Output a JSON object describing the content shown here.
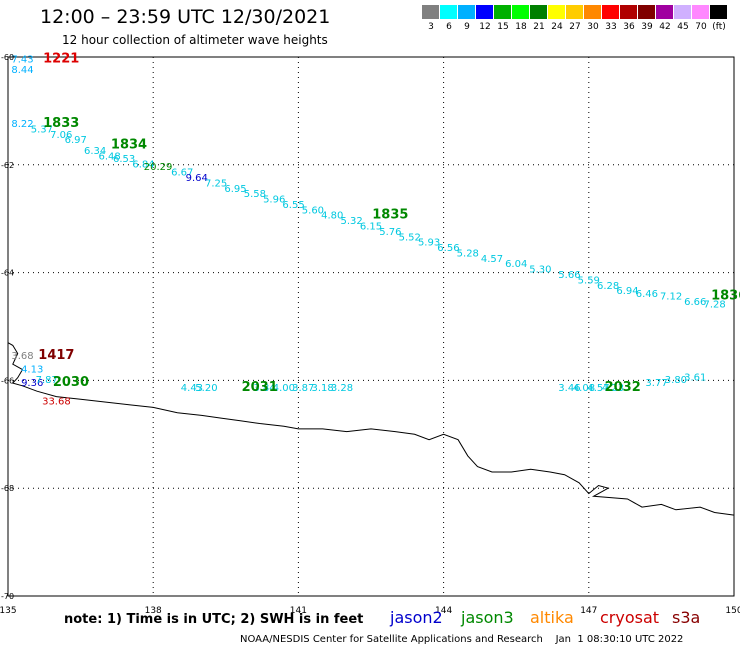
{
  "title": "12:00 – 23:59 UTC 12/30/2021",
  "subtitle": "12 hour collection of altimeter wave heights",
  "note": "note: 1) Time is in UTC; 2) SWH is in feet",
  "credit": "NOAA/NESDIS Center for Satellite Applications and Research    Jan  1 08:30:10 UTC 2022",
  "satellites": [
    {
      "name": "jason2",
      "color": "#0000cc"
    },
    {
      "name": "jason3",
      "color": "#008800"
    },
    {
      "name": "altika",
      "color": "#ff8800"
    },
    {
      "name": "cryosat",
      "color": "#cc0000"
    },
    {
      "name": "s3a",
      "color": "#880000"
    }
  ],
  "legend": {
    "colors": [
      "#808080",
      "#00ffff",
      "#00b0ff",
      "#0000ff",
      "#00b000",
      "#00ff00",
      "#008000",
      "#ffff00",
      "#ffcc00",
      "#ff8800",
      "#ff0000",
      "#b00000",
      "#800000",
      "#a000a0",
      "#d0b0ff",
      "#ff88ff",
      "#000000"
    ],
    "labels": [
      "3",
      "6",
      "9",
      "12",
      "15",
      "18",
      "21",
      "24",
      "27",
      "30",
      "33",
      "36",
      "39",
      "42",
      "45",
      "70",
      "(ft)"
    ]
  },
  "map": {
    "lon_range": [
      135,
      150
    ],
    "lat_range": [
      -70,
      -60
    ],
    "lon_ticks": [
      "135",
      "138",
      "141",
      "144",
      "147",
      "150"
    ],
    "lat_ticks": [
      "-60",
      "-62",
      "-64",
      "-66",
      "-68",
      "-70"
    ],
    "grid": true,
    "time_labels": [
      {
        "text": "1221",
        "lon": 136.1,
        "lat": -60.1,
        "color": "#dd0000"
      },
      {
        "text": "1833",
        "lon": 136.1,
        "lat": -61.3,
        "color": "#008800"
      },
      {
        "text": "1834",
        "lon": 137.5,
        "lat": -61.7,
        "color": "#008800"
      },
      {
        "text": "1835",
        "lon": 142.9,
        "lat": -63.0,
        "color": "#008800"
      },
      {
        "text": "1836",
        "lon": 149.9,
        "lat": -64.5,
        "color": "#008800"
      },
      {
        "text": "1417",
        "lon": 136.0,
        "lat": -65.6,
        "color": "#800000"
      },
      {
        "text": "2030",
        "lon": 136.3,
        "lat": -66.1,
        "color": "#008800"
      },
      {
        "text": "2031",
        "lon": 140.2,
        "lat": -66.2,
        "color": "#008800"
      },
      {
        "text": "2032",
        "lon": 147.7,
        "lat": -66.2,
        "color": "#008800"
      }
    ],
    "wave_labels": [
      {
        "text": "7.43",
        "lon": 135.3,
        "lat": -60.1,
        "color": "#00b0ff"
      },
      {
        "text": "8.44",
        "lon": 135.3,
        "lat": -60.3,
        "color": "#00b0ff"
      },
      {
        "text": "8.22",
        "lon": 135.3,
        "lat": -61.3,
        "color": "#00b0ff"
      },
      {
        "text": "5.37",
        "lon": 135.7,
        "lat": -61.4,
        "color": "#00c8e0"
      },
      {
        "text": "7.06",
        "lon": 136.1,
        "lat": -61.5,
        "color": "#00c8e0"
      },
      {
        "text": "6.97",
        "lon": 136.4,
        "lat": -61.6,
        "color": "#00c8e0"
      },
      {
        "text": "6.34",
        "lon": 136.8,
        "lat": -61.8,
        "color": "#00c8e0"
      },
      {
        "text": "6.48",
        "lon": 137.1,
        "lat": -61.9,
        "color": "#00c8e0"
      },
      {
        "text": "6.53",
        "lon": 137.4,
        "lat": -61.95,
        "color": "#00c8e0"
      },
      {
        "text": "6.84",
        "lon": 137.8,
        "lat": -62.05,
        "color": "#00c8e0"
      },
      {
        "text": "20.29",
        "lon": 138.1,
        "lat": -62.1,
        "color": "#008800"
      },
      {
        "text": "6.67",
        "lon": 138.6,
        "lat": -62.2,
        "color": "#00c8e0"
      },
      {
        "text": "9.64",
        "lon": 138.9,
        "lat": -62.3,
        "color": "#0000cc"
      },
      {
        "text": "7.25",
        "lon": 139.3,
        "lat": -62.4,
        "color": "#00c8e0"
      },
      {
        "text": "6.95",
        "lon": 139.7,
        "lat": -62.5,
        "color": "#00c8e0"
      },
      {
        "text": "5.58",
        "lon": 140.1,
        "lat": -62.6,
        "color": "#00c8e0"
      },
      {
        "text": "5.96",
        "lon": 140.5,
        "lat": -62.7,
        "color": "#00c8e0"
      },
      {
        "text": "6.55",
        "lon": 140.9,
        "lat": -62.8,
        "color": "#00c8e0"
      },
      {
        "text": "5.60",
        "lon": 141.3,
        "lat": -62.9,
        "color": "#00c8e0"
      },
      {
        "text": "4.80",
        "lon": 141.7,
        "lat": -63.0,
        "color": "#00c8e0"
      },
      {
        "text": "5.32",
        "lon": 142.1,
        "lat": -63.1,
        "color": "#00c8e0"
      },
      {
        "text": "6.15",
        "lon": 142.5,
        "lat": -63.2,
        "color": "#00c8e0"
      },
      {
        "text": "5.76",
        "lon": 142.9,
        "lat": -63.3,
        "color": "#00c8e0"
      },
      {
        "text": "5.52",
        "lon": 143.3,
        "lat": -63.4,
        "color": "#00c8e0"
      },
      {
        "text": "5.93",
        "lon": 143.7,
        "lat": -63.5,
        "color": "#00c8e0"
      },
      {
        "text": "6.56",
        "lon": 144.1,
        "lat": -63.6,
        "color": "#00c8e0"
      },
      {
        "text": "5.28",
        "lon": 144.5,
        "lat": -63.7,
        "color": "#00c8e0"
      },
      {
        "text": "4.57",
        "lon": 145.0,
        "lat": -63.8,
        "color": "#00c8e0"
      },
      {
        "text": "6.04",
        "lon": 145.5,
        "lat": -63.9,
        "color": "#00c8e0"
      },
      {
        "text": "5.30",
        "lon": 146.0,
        "lat": -64.0,
        "color": "#00c8e0"
      },
      {
        "text": "5.66",
        "lon": 146.6,
        "lat": -64.1,
        "color": "#00c8e0"
      },
      {
        "text": "5.59",
        "lon": 147.0,
        "lat": -64.2,
        "color": "#00c8e0"
      },
      {
        "text": "6.28",
        "lon": 147.4,
        "lat": -64.3,
        "color": "#00c8e0"
      },
      {
        "text": "6.94",
        "lon": 147.8,
        "lat": -64.4,
        "color": "#00c8e0"
      },
      {
        "text": "6.46",
        "lon": 148.2,
        "lat": -64.45,
        "color": "#00c8e0"
      },
      {
        "text": "7.12",
        "lon": 148.7,
        "lat": -64.5,
        "color": "#00c8e0"
      },
      {
        "text": "6.66",
        "lon": 149.2,
        "lat": -64.6,
        "color": "#00c8e0"
      },
      {
        "text": "7.28",
        "lon": 149.6,
        "lat": -64.65,
        "color": "#00c8e0"
      },
      {
        "text": "3.68",
        "lon": 135.3,
        "lat": -65.6,
        "color": "#808080"
      },
      {
        "text": "4.13",
        "lon": 135.5,
        "lat": -65.85,
        "color": "#00b0ff"
      },
      {
        "text": "9.36",
        "lon": 135.5,
        "lat": -66.1,
        "color": "#0000cc"
      },
      {
        "text": "7.87",
        "lon": 135.8,
        "lat": -66.05,
        "color": "#00c8e0"
      },
      {
        "text": "33.68",
        "lon": 136.0,
        "lat": -66.45,
        "color": "#cc0000"
      },
      {
        "text": "4.43",
        "lon": 138.8,
        "lat": -66.2,
        "color": "#00c8e0"
      },
      {
        "text": "5.20",
        "lon": 139.1,
        "lat": -66.2,
        "color": "#00c8e0"
      },
      {
        "text": "3.84",
        "lon": 140.3,
        "lat": -66.2,
        "color": "#00c8e0"
      },
      {
        "text": "4.00",
        "lon": 140.7,
        "lat": -66.2,
        "color": "#00c8e0"
      },
      {
        "text": "3.87",
        "lon": 141.1,
        "lat": -66.2,
        "color": "#00c8e0"
      },
      {
        "text": "3.18",
        "lon": 141.5,
        "lat": -66.2,
        "color": "#00c8e0"
      },
      {
        "text": "3.28",
        "lon": 141.9,
        "lat": -66.2,
        "color": "#00c8e0"
      },
      {
        "text": "3.46",
        "lon": 146.6,
        "lat": -66.2,
        "color": "#00c8e0"
      },
      {
        "text": "4.08",
        "lon": 146.9,
        "lat": -66.2,
        "color": "#00c8e0"
      },
      {
        "text": "4.57",
        "lon": 147.2,
        "lat": -66.2,
        "color": "#00c8e0"
      },
      {
        "text": "4.23",
        "lon": 147.5,
        "lat": -66.2,
        "color": "#00c8e0"
      },
      {
        "text": "3.77",
        "lon": 148.4,
        "lat": -66.1,
        "color": "#00c8e0"
      },
      {
        "text": "3.80",
        "lon": 148.8,
        "lat": -66.05,
        "color": "#00c8e0"
      },
      {
        "text": "3.61",
        "lon": 149.2,
        "lat": -66.0,
        "color": "#00c8e0"
      }
    ],
    "coastline": [
      [
        135.0,
        -65.3
      ],
      [
        135.1,
        -65.35
      ],
      [
        135.2,
        -65.5
      ],
      [
        135.1,
        -65.7
      ],
      [
        135.3,
        -65.8
      ],
      [
        135.2,
        -65.95
      ],
      [
        135.1,
        -66.05
      ],
      [
        135.3,
        -66.1
      ],
      [
        135.6,
        -66.2
      ],
      [
        136.0,
        -66.3
      ],
      [
        136.5,
        -66.35
      ],
      [
        137.0,
        -66.4
      ],
      [
        137.5,
        -66.45
      ],
      [
        138.0,
        -66.5
      ],
      [
        138.5,
        -66.6
      ],
      [
        139.0,
        -66.65
      ],
      [
        139.4,
        -66.7
      ],
      [
        139.8,
        -66.75
      ],
      [
        140.2,
        -66.8
      ],
      [
        140.7,
        -66.85
      ],
      [
        141.0,
        -66.9
      ],
      [
        141.5,
        -66.9
      ],
      [
        142.0,
        -66.95
      ],
      [
        142.5,
        -66.9
      ],
      [
        143.0,
        -66.95
      ],
      [
        143.4,
        -67.0
      ],
      [
        143.7,
        -67.1
      ],
      [
        144.0,
        -67.0
      ],
      [
        144.3,
        -67.1
      ],
      [
        144.5,
        -67.4
      ],
      [
        144.7,
        -67.6
      ],
      [
        145.0,
        -67.7
      ],
      [
        145.4,
        -67.7
      ],
      [
        145.8,
        -67.65
      ],
      [
        146.2,
        -67.7
      ],
      [
        146.5,
        -67.75
      ],
      [
        146.8,
        -67.9
      ],
      [
        147.0,
        -68.1
      ],
      [
        147.2,
        -67.95
      ],
      [
        147.4,
        -68.0
      ],
      [
        147.1,
        -68.15
      ],
      [
        147.8,
        -68.2
      ],
      [
        148.1,
        -68.35
      ],
      [
        148.5,
        -68.3
      ],
      [
        148.8,
        -68.4
      ],
      [
        149.3,
        -68.35
      ],
      [
        149.6,
        -68.45
      ],
      [
        150.0,
        -68.5
      ]
    ]
  }
}
